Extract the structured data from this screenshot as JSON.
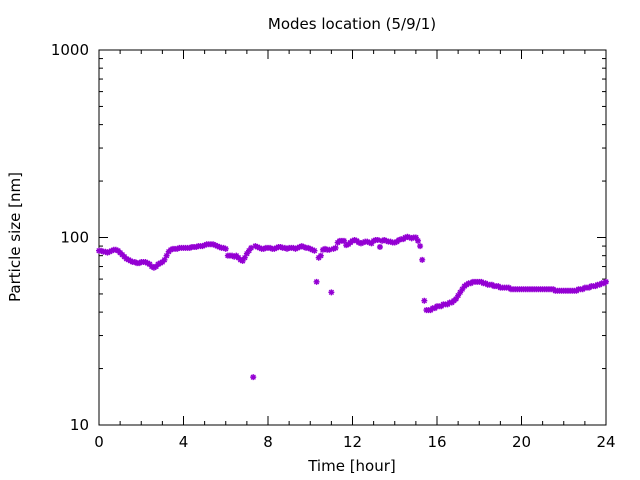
{
  "chart_data": {
    "type": "scatter",
    "title": "Modes location (5/9/1)",
    "xlabel": "Time [hour]",
    "ylabel": "Particle size [nm]",
    "xlim": [
      0,
      24
    ],
    "ylim": [
      10,
      1000
    ],
    "yscale": "log",
    "grid": false,
    "x_ticks": [
      "0",
      "4",
      "8",
      "12",
      "16",
      "20",
      "24"
    ],
    "y_ticks": [
      "10",
      "100",
      "1000"
    ],
    "series": [
      {
        "color": "#9400d3",
        "marker": "star",
        "points": [
          [
            0.0,
            85
          ],
          [
            0.1,
            85
          ],
          [
            0.2,
            84
          ],
          [
            0.3,
            84
          ],
          [
            0.4,
            83
          ],
          [
            0.5,
            84
          ],
          [
            0.6,
            85
          ],
          [
            0.7,
            86
          ],
          [
            0.8,
            86
          ],
          [
            0.9,
            85
          ],
          [
            1.0,
            83
          ],
          [
            1.1,
            81
          ],
          [
            1.2,
            79
          ],
          [
            1.3,
            77
          ],
          [
            1.4,
            76
          ],
          [
            1.5,
            75
          ],
          [
            1.6,
            74
          ],
          [
            1.7,
            74
          ],
          [
            1.8,
            73
          ],
          [
            1.9,
            73
          ],
          [
            2.0,
            74
          ],
          [
            2.1,
            74
          ],
          [
            2.2,
            74
          ],
          [
            2.3,
            73
          ],
          [
            2.4,
            72
          ],
          [
            2.5,
            70
          ],
          [
            2.6,
            69
          ],
          [
            2.7,
            70
          ],
          [
            2.8,
            72
          ],
          [
            2.9,
            73
          ],
          [
            3.0,
            74
          ],
          [
            3.1,
            76
          ],
          [
            3.2,
            80
          ],
          [
            3.3,
            84
          ],
          [
            3.4,
            86
          ],
          [
            3.5,
            87
          ],
          [
            3.6,
            87
          ],
          [
            3.7,
            87
          ],
          [
            3.8,
            88
          ],
          [
            3.9,
            88
          ],
          [
            4.0,
            88
          ],
          [
            4.1,
            88
          ],
          [
            4.2,
            88
          ],
          [
            4.3,
            88
          ],
          [
            4.4,
            89
          ],
          [
            4.5,
            89
          ],
          [
            4.6,
            89
          ],
          [
            4.7,
            90
          ],
          [
            4.8,
            90
          ],
          [
            4.9,
            90
          ],
          [
            5.0,
            91
          ],
          [
            5.1,
            92
          ],
          [
            5.2,
            92
          ],
          [
            5.3,
            92
          ],
          [
            5.4,
            92
          ],
          [
            5.5,
            91
          ],
          [
            5.6,
            90
          ],
          [
            5.7,
            89
          ],
          [
            5.8,
            88
          ],
          [
            5.9,
            88
          ],
          [
            6.0,
            87
          ],
          [
            6.1,
            80
          ],
          [
            6.2,
            80
          ],
          [
            6.3,
            80
          ],
          [
            6.4,
            79
          ],
          [
            6.5,
            80
          ],
          [
            6.6,
            78
          ],
          [
            6.7,
            76
          ],
          [
            6.8,
            75
          ],
          [
            6.9,
            78
          ],
          [
            7.0,
            82
          ],
          [
            7.1,
            85
          ],
          [
            7.2,
            88
          ],
          [
            7.3,
            18
          ],
          [
            7.4,
            90
          ],
          [
            7.5,
            89
          ],
          [
            7.6,
            88
          ],
          [
            7.7,
            87
          ],
          [
            7.8,
            87
          ],
          [
            7.9,
            88
          ],
          [
            8.0,
            88
          ],
          [
            8.1,
            88
          ],
          [
            8.2,
            87
          ],
          [
            8.3,
            87
          ],
          [
            8.4,
            88
          ],
          [
            8.5,
            89
          ],
          [
            8.6,
            89
          ],
          [
            8.7,
            88
          ],
          [
            8.8,
            88
          ],
          [
            8.9,
            87
          ],
          [
            9.0,
            88
          ],
          [
            9.1,
            88
          ],
          [
            9.2,
            88
          ],
          [
            9.3,
            87
          ],
          [
            9.4,
            88
          ],
          [
            9.5,
            89
          ],
          [
            9.6,
            90
          ],
          [
            9.7,
            89
          ],
          [
            9.8,
            88
          ],
          [
            9.9,
            88
          ],
          [
            10.0,
            87
          ],
          [
            10.1,
            86
          ],
          [
            10.2,
            85
          ],
          [
            10.3,
            58
          ],
          [
            10.4,
            78
          ],
          [
            10.5,
            80
          ],
          [
            10.6,
            86
          ],
          [
            10.7,
            87
          ],
          [
            10.8,
            86
          ],
          [
            10.9,
            86
          ],
          [
            11.0,
            51
          ],
          [
            11.1,
            87
          ],
          [
            11.2,
            88
          ],
          [
            11.3,
            94
          ],
          [
            11.4,
            96
          ],
          [
            11.5,
            96
          ],
          [
            11.6,
            96
          ],
          [
            11.7,
            91
          ],
          [
            11.8,
            92
          ],
          [
            11.9,
            94
          ],
          [
            12.0,
            96
          ],
          [
            12.1,
            97
          ],
          [
            12.2,
            96
          ],
          [
            12.3,
            94
          ],
          [
            12.4,
            93
          ],
          [
            12.5,
            94
          ],
          [
            12.6,
            95
          ],
          [
            12.7,
            95
          ],
          [
            12.8,
            94
          ],
          [
            12.9,
            93
          ],
          [
            13.0,
            96
          ],
          [
            13.1,
            97
          ],
          [
            13.2,
            97
          ],
          [
            13.3,
            89
          ],
          [
            13.4,
            96
          ],
          [
            13.5,
            97
          ],
          [
            13.6,
            96
          ],
          [
            13.7,
            95
          ],
          [
            13.8,
            95
          ],
          [
            13.9,
            94
          ],
          [
            14.0,
            94
          ],
          [
            14.1,
            95
          ],
          [
            14.2,
            97
          ],
          [
            14.3,
            98
          ],
          [
            14.4,
            98
          ],
          [
            14.5,
            100
          ],
          [
            14.6,
            101
          ],
          [
            14.7,
            100
          ],
          [
            14.8,
            99
          ],
          [
            14.9,
            100
          ],
          [
            15.0,
            100
          ],
          [
            15.1,
            96
          ],
          [
            15.2,
            90
          ],
          [
            15.3,
            76
          ],
          [
            15.4,
            46
          ],
          [
            15.5,
            41
          ],
          [
            15.6,
            41
          ],
          [
            15.7,
            41
          ],
          [
            15.8,
            42
          ],
          [
            15.9,
            42
          ],
          [
            16.0,
            43
          ],
          [
            16.1,
            43
          ],
          [
            16.2,
            43
          ],
          [
            16.3,
            44
          ],
          [
            16.4,
            44
          ],
          [
            16.5,
            44
          ],
          [
            16.6,
            45
          ],
          [
            16.7,
            45
          ],
          [
            16.8,
            46
          ],
          [
            16.9,
            47
          ],
          [
            17.0,
            49
          ],
          [
            17.1,
            51
          ],
          [
            17.2,
            53
          ],
          [
            17.3,
            55
          ],
          [
            17.4,
            56
          ],
          [
            17.5,
            57
          ],
          [
            17.6,
            57
          ],
          [
            17.7,
            58
          ],
          [
            17.8,
            58
          ],
          [
            17.9,
            58
          ],
          [
            18.0,
            58
          ],
          [
            18.1,
            58
          ],
          [
            18.2,
            57
          ],
          [
            18.3,
            57
          ],
          [
            18.4,
            56
          ],
          [
            18.5,
            56
          ],
          [
            18.6,
            56
          ],
          [
            18.7,
            55
          ],
          [
            18.8,
            55
          ],
          [
            18.9,
            55
          ],
          [
            19.0,
            54
          ],
          [
            19.1,
            54
          ],
          [
            19.2,
            54
          ],
          [
            19.3,
            54
          ],
          [
            19.4,
            54
          ],
          [
            19.5,
            53
          ],
          [
            19.6,
            53
          ],
          [
            19.7,
            53
          ],
          [
            19.8,
            53
          ],
          [
            19.9,
            53
          ],
          [
            20.0,
            53
          ],
          [
            20.1,
            53
          ],
          [
            20.2,
            53
          ],
          [
            20.3,
            53
          ],
          [
            20.4,
            53
          ],
          [
            20.5,
            53
          ],
          [
            20.6,
            53
          ],
          [
            20.7,
            53
          ],
          [
            20.8,
            53
          ],
          [
            20.9,
            53
          ],
          [
            21.0,
            53
          ],
          [
            21.1,
            53
          ],
          [
            21.2,
            53
          ],
          [
            21.3,
            53
          ],
          [
            21.4,
            53
          ],
          [
            21.5,
            53
          ],
          [
            21.6,
            52
          ],
          [
            21.7,
            52
          ],
          [
            21.8,
            52
          ],
          [
            21.9,
            52
          ],
          [
            22.0,
            52
          ],
          [
            22.1,
            52
          ],
          [
            22.2,
            52
          ],
          [
            22.3,
            52
          ],
          [
            22.4,
            52
          ],
          [
            22.5,
            52
          ],
          [
            22.6,
            52
          ],
          [
            22.7,
            53
          ],
          [
            22.8,
            53
          ],
          [
            22.9,
            53
          ],
          [
            23.0,
            54
          ],
          [
            23.1,
            54
          ],
          [
            23.2,
            54
          ],
          [
            23.3,
            55
          ],
          [
            23.4,
            55
          ],
          [
            23.5,
            55
          ],
          [
            23.6,
            56
          ],
          [
            23.7,
            56
          ],
          [
            23.8,
            57
          ],
          [
            23.9,
            57
          ],
          [
            24.0,
            58
          ]
        ]
      }
    ]
  }
}
